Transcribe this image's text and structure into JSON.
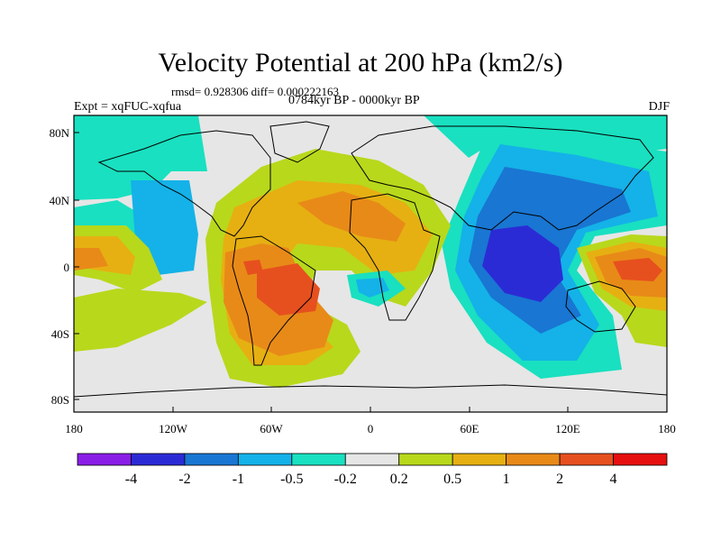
{
  "title": "Velocity Potential at 200 hPa (km2/s)",
  "stats": "rmsd= 0.928306 diff= 0.000222163",
  "experiment": "Expt = xqFUC-xqfua",
  "period": "0784kyr BP - 0000kyr BP",
  "season": "DJF",
  "axes": {
    "lon_ticks": [
      "180",
      "120W",
      "60W",
      "0",
      "60E",
      "120E",
      "180"
    ],
    "lat_ticks": [
      "80N",
      "40N",
      "0",
      "40S",
      "80S"
    ]
  },
  "colorbar": {
    "labels": [
      "-4",
      "-2",
      "-1",
      "-0.5",
      "-0.2",
      "0.2",
      "0.5",
      "1",
      "2",
      "4"
    ],
    "colors": [
      "#8a1ee6",
      "#2b2bd6",
      "#1976d2",
      "#14b2e8",
      "#19e0c0",
      "#e6e6e6",
      "#b8d81c",
      "#e6b012",
      "#e88a18",
      "#e6501e",
      "#e61010"
    ]
  },
  "palette": {
    "neutral": "#e6e6e6",
    "land_outline": "#000000"
  }
}
